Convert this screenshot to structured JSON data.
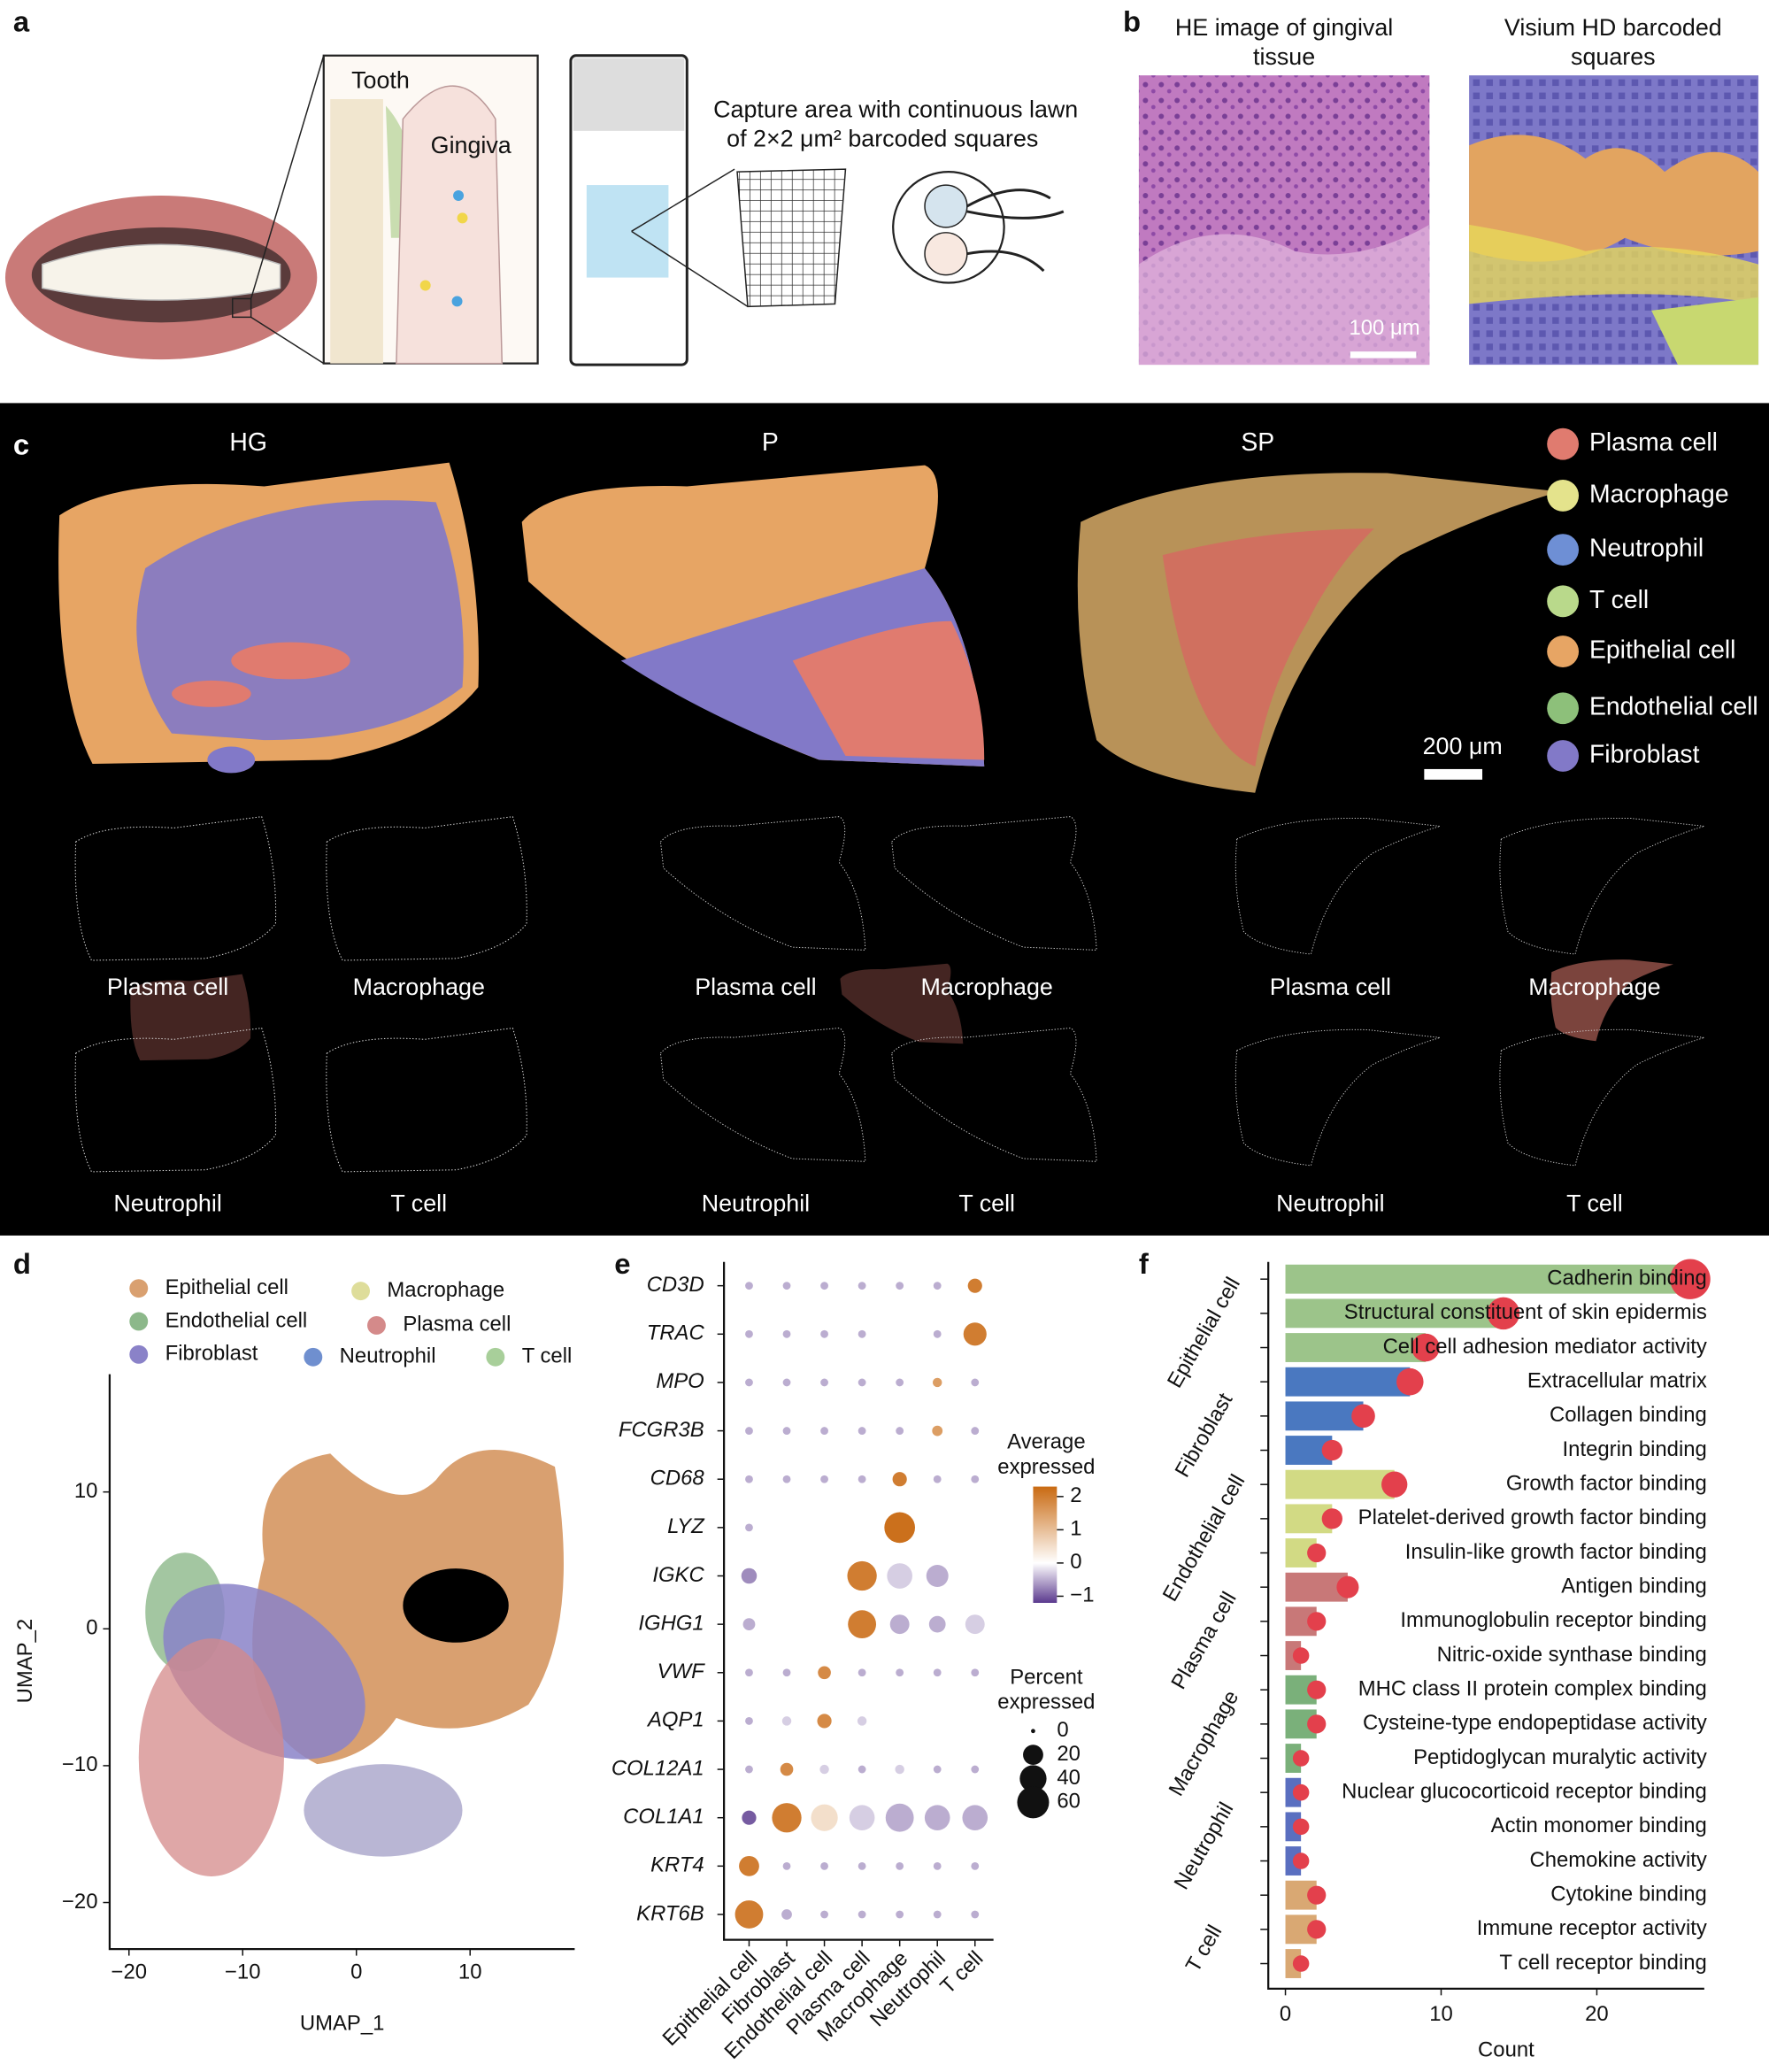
{
  "panel_labels": [
    "a",
    "b",
    "c",
    "d",
    "e",
    "f"
  ],
  "panel_a": {
    "tooth": "Tooth",
    "gingiva": "Gingiva",
    "capture_area": [
      "Capture area with continuous lawn",
      "of 2×2 μm² barcoded squares"
    ]
  },
  "panel_b": {
    "he_title": [
      "HE image of gingival",
      "tissue"
    ],
    "visium_title": [
      "Visium HD barcoded",
      "squares"
    ],
    "scale_bar": "100 μm"
  },
  "panel_c": {
    "samples": [
      "HG",
      "P",
      "SP"
    ],
    "legend": [
      {
        "name": "Plasma cell",
        "color": "#e07b6f"
      },
      {
        "name": "Macrophage",
        "color": "#e4e38c"
      },
      {
        "name": "Neutrophil",
        "color": "#6e8fd5"
      },
      {
        "name": "T cell",
        "color": "#b9d98b"
      },
      {
        "name": "Epithelial cell",
        "color": "#e7a564"
      },
      {
        "name": "Endothelial cell",
        "color": "#8dc07a"
      },
      {
        "name": "Fibroblast",
        "color": "#8279c8"
      }
    ],
    "scale_bar": "200 μm",
    "cell_labels": [
      "Plasma cell",
      "Macrophage",
      "Neutrophil",
      "T cell"
    ]
  },
  "chart_data": [
    {
      "type": "scatter",
      "xlabel": "UMAP_1",
      "ylabel": "UMAP_2",
      "series": [
        {
          "name": "Epithelial cell",
          "color": "#d9a070"
        },
        {
          "name": "Macrophage",
          "color": "#dedd9a"
        },
        {
          "name": "Endothelial cell",
          "color": "#8cb88a"
        },
        {
          "name": "Plasma cell",
          "color": "#d48a8a"
        },
        {
          "name": "Fibroblast",
          "color": "#8a82c8"
        },
        {
          "name": "Neutrophil",
          "color": "#6f8fcf"
        },
        {
          "name": "T cell",
          "color": "#a8cf9a"
        }
      ],
      "xlim": [
        -21.7,
        19.2
      ],
      "xticks": [
        {
          "value": -20,
          "label": "−20"
        },
        {
          "value": -10,
          "label": "−10"
        },
        0,
        10
      ],
      "ylim": [
        -23.4,
        18.6
      ],
      "yticks": [
        10,
        0,
        {
          "value": -10,
          "label": "−10"
        },
        {
          "value": -20,
          "label": "−20"
        }
      ]
    },
    {
      "type": "dot",
      "genes": [
        "CD3D",
        "TRAC",
        "MPO",
        "FCGR3B",
        "CD68",
        "LYZ",
        "IGKC",
        "IGHG1",
        "VWF",
        "AQP1",
        "COL12A1",
        "COL1A1",
        "KRT4",
        "KRT6B"
      ],
      "categories": [
        "Epithelial cell",
        "Fibroblast",
        "Endothelial cell",
        "Plasma cell",
        "Macrophage",
        "Neutrophil",
        "T cell"
      ],
      "expression": [
        [
          -0.5,
          -0.5,
          -0.5,
          -0.5,
          -0.5,
          -0.5,
          2
        ],
        [
          -0.5,
          -0.5,
          -0.5,
          -0.5,
          0,
          -0.5,
          2
        ],
        [
          -0.5,
          -0.5,
          -0.5,
          -0.5,
          -0.5,
          1.5,
          -0.5
        ],
        [
          -0.5,
          -0.5,
          -0.5,
          -0.5,
          -0.5,
          1.5,
          -0.5
        ],
        [
          -0.5,
          -0.5,
          -0.5,
          -0.5,
          2,
          -0.5,
          -0.5
        ],
        [
          -0.5,
          0,
          0,
          0,
          2.2,
          0,
          0
        ],
        [
          -0.7,
          0,
          0,
          2,
          -0.3,
          -0.5,
          0
        ],
        [
          -0.5,
          0,
          0,
          2,
          -0.5,
          -0.5,
          -0.3
        ],
        [
          -0.5,
          -0.5,
          1.8,
          -0.5,
          -0.5,
          -0.5,
          -0.5
        ],
        [
          -0.5,
          -0.3,
          1.8,
          -0.3,
          0,
          0,
          0
        ],
        [
          -0.5,
          1.8,
          -0.3,
          -0.5,
          -0.3,
          -0.5,
          -0.5
        ],
        [
          -1,
          2,
          0.5,
          -0.3,
          -0.5,
          -0.5,
          -0.5
        ],
        [
          2,
          -0.5,
          -0.5,
          -0.5,
          -0.5,
          -0.5,
          -0.5
        ],
        [
          2,
          -0.5,
          -0.5,
          -0.5,
          -0.5,
          -0.5,
          -0.5
        ]
      ],
      "percent": [
        [
          1,
          1,
          1,
          1,
          1,
          1,
          8
        ],
        [
          1,
          1,
          1,
          1,
          3,
          1,
          28
        ],
        [
          1,
          1,
          1,
          1,
          1,
          2,
          1
        ],
        [
          1,
          1,
          1,
          1,
          1,
          3,
          1
        ],
        [
          1,
          1,
          1,
          1,
          8,
          1,
          1
        ],
        [
          1,
          2,
          2,
          2,
          55,
          2,
          2
        ],
        [
          10,
          25,
          25,
          50,
          35,
          25,
          35
        ],
        [
          5,
          18,
          18,
          45,
          18,
          12,
          18
        ],
        [
          1,
          1,
          6,
          1,
          1,
          1,
          1
        ],
        [
          1,
          2,
          8,
          2,
          3,
          3,
          3
        ],
        [
          1,
          6,
          2,
          1,
          2,
          1,
          1
        ],
        [
          8,
          50,
          40,
          35,
          45,
          35,
          35
        ],
        [
          20,
          1,
          1,
          1,
          1,
          1,
          1
        ],
        [
          45,
          3,
          1,
          1,
          1,
          1,
          1
        ]
      ],
      "color_title": [
        "Average",
        "expressed"
      ],
      "clim": [
        -1.2,
        2.3
      ],
      "colors": [
        "#5b3a8e",
        "#ffffff",
        "#c96a12"
      ],
      "colorbar_ticks": [
        2,
        1,
        0,
        {
          "value": -1,
          "label": "−1"
        }
      ],
      "size_title": [
        "Percent",
        "expressed"
      ],
      "size_ticks": [
        0,
        20,
        40,
        60
      ]
    },
    {
      "type": "bar",
      "xlabel": "Count",
      "xlim": [
        -1.1,
        26.9
      ],
      "xticks": [
        0,
        10,
        20
      ],
      "series": [
        {
          "name": "Epithelial cell",
          "color": "#9cc48a",
          "categories": [
            "Cadherin binding",
            "Structural constituent of skin epidermis",
            "Cell cell adhesion mediator activity"
          ],
          "values": [
            26,
            14,
            9
          ]
        },
        {
          "name": "Fibroblast",
          "color": "#4a78c0",
          "categories": [
            "Extracellular matrix",
            "Collagen binding",
            "Integrin binding"
          ],
          "values": [
            8,
            5,
            3
          ]
        },
        {
          "name": "Endothelial cell",
          "color": "#d2da84",
          "categories": [
            "Growth factor binding",
            "Platelet-derived growth factor binding",
            "Insulin-like growth factor binding"
          ],
          "values": [
            7,
            3,
            2
          ]
        },
        {
          "name": "Plasma cell",
          "color": "#c87878",
          "categories": [
            "Antigen binding",
            "Immunoglobulin receptor binding",
            "Nitric-oxide synthase binding"
          ],
          "values": [
            4,
            2,
            1
          ]
        },
        {
          "name": "Macrophage",
          "color": "#7ab07a",
          "categories": [
            "MHC class II protein complex binding",
            "Cysteine-type endopeptidase activity",
            "Peptidoglycan muralytic activity"
          ],
          "values": [
            2,
            2,
            1
          ]
        },
        {
          "name": "Neutrophil",
          "color": "#5a6fc0",
          "categories": [
            "Nuclear glucocorticoid receptor binding",
            "Actin monomer binding",
            "Chemokine activity"
          ],
          "values": [
            1,
            1,
            1
          ]
        },
        {
          "name": "T cell",
          "color": "#d9a873",
          "categories": [
            "Cytokine binding",
            "Immune receptor activity",
            "T cell receptor binding"
          ],
          "values": [
            2,
            2,
            1
          ]
        }
      ]
    }
  ]
}
